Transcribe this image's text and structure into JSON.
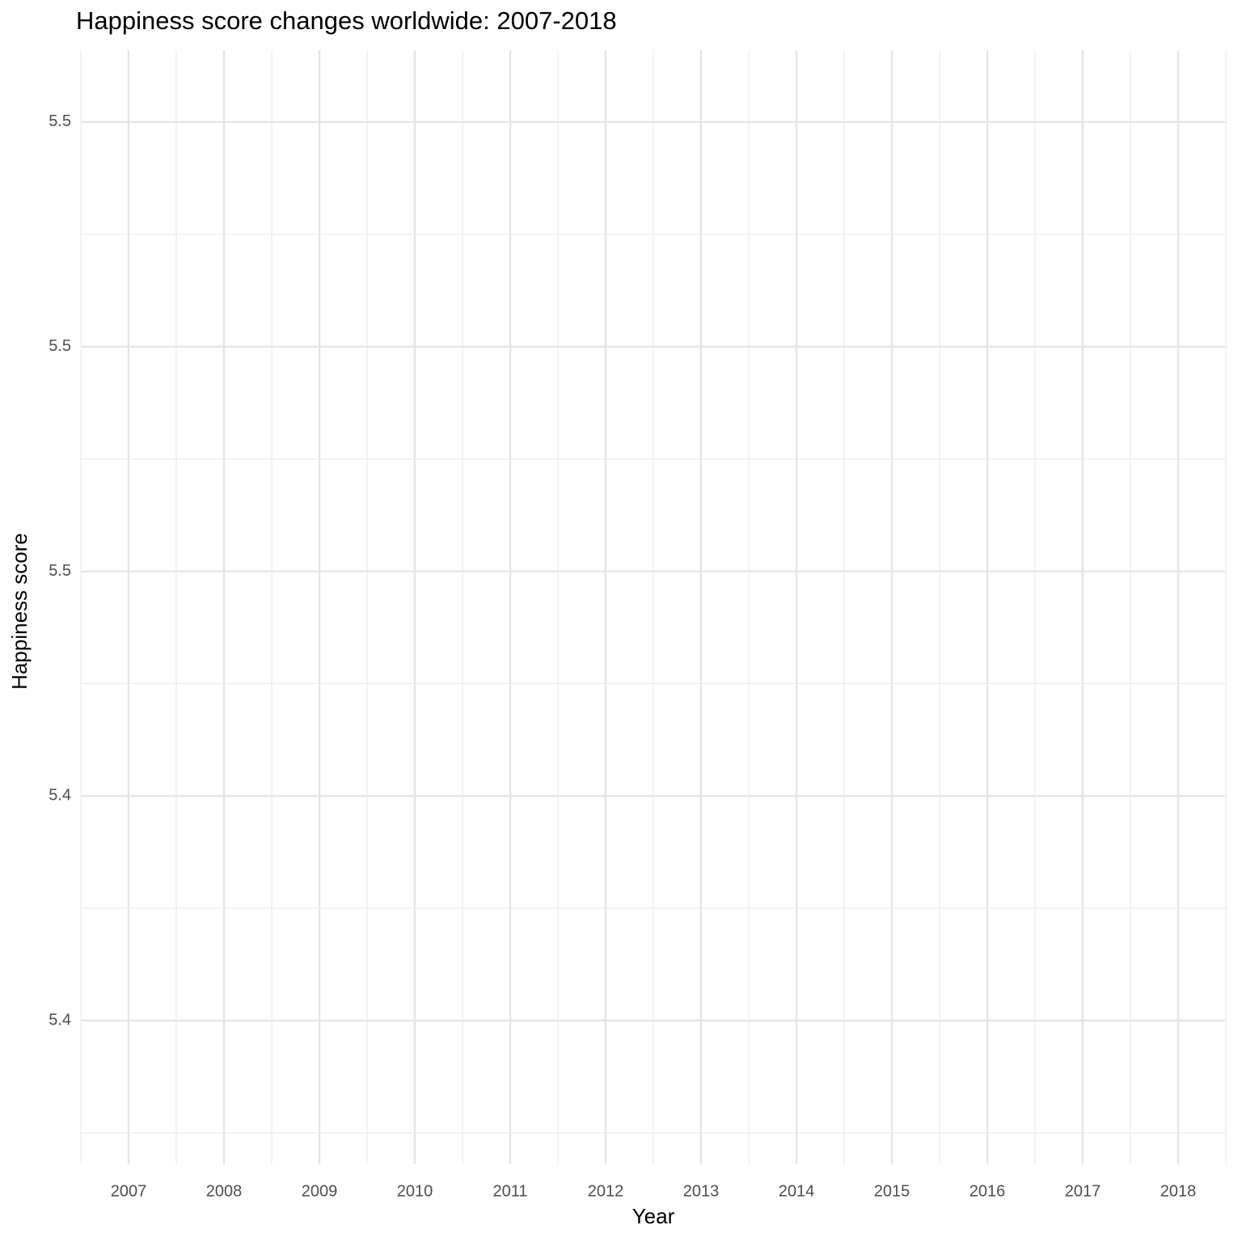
{
  "chart_data": {
    "type": "line",
    "title": "Happiness score changes worldwide: 2007-2018",
    "x_label": "Year",
    "y_label": "Happiness score",
    "categories": [
      "2007",
      "2008",
      "2009",
      "2010",
      "2011",
      "2012",
      "2013",
      "2014",
      "2015",
      "2016",
      "2017",
      "2018"
    ],
    "series": [],
    "ylim": [
      5.384,
      5.508
    ],
    "yticks": [
      5.4,
      {
        "value": 5.425,
        "label": "5.4"
      },
      {
        "value": 5.45,
        "label": "5.5"
      },
      {
        "value": 5.475,
        "label": "5.5"
      },
      5.5
    ],
    "grid": true
  }
}
